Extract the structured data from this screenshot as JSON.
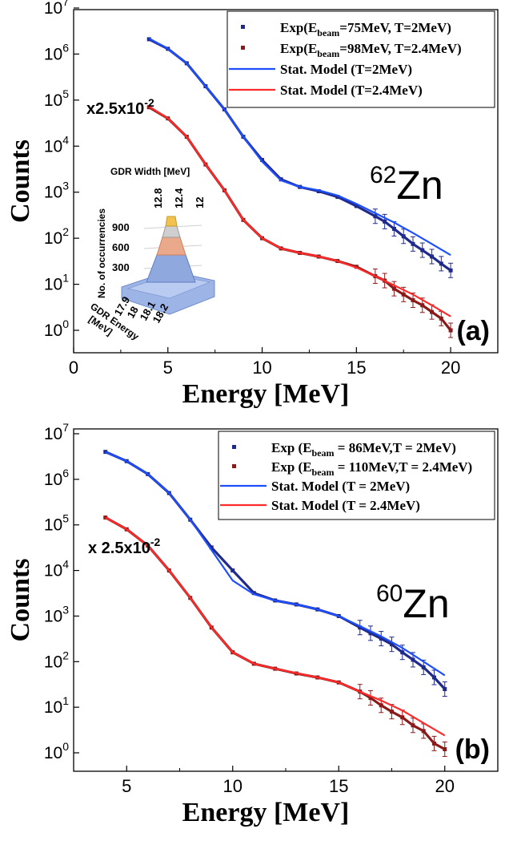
{
  "chart_data": [
    {
      "type": "scatter",
      "panel_label": "(a)",
      "nucleus": {
        "mass": "62",
        "symbol": "Zn"
      },
      "scale_label": {
        "prefix": "x2.5x10",
        "exp": "-2"
      },
      "xlabel": "Energy [MeV]",
      "ylabel": "Counts",
      "y_scale": "log",
      "xlim": [
        0,
        22.5
      ],
      "ylim_exp": [
        -0.35,
        7
      ],
      "x_ticks": [
        0,
        5,
        10,
        15,
        20
      ],
      "y_ticks": [
        {
          "base": "10",
          "exp": "0"
        },
        {
          "base": "10",
          "exp": "1"
        },
        {
          "base": "10",
          "exp": "2"
        },
        {
          "base": "10",
          "exp": "3"
        },
        {
          "base": "10",
          "exp": "4"
        },
        {
          "base": "10",
          "exp": "5"
        },
        {
          "base": "10",
          "exp": "6"
        },
        {
          "base": "10",
          "exp": "7"
        }
      ],
      "legend": [
        {
          "kind": "marker",
          "color": "#1f2a8a",
          "main": "Exp(E",
          "sub": "beam",
          "rest": "=75MeV, T=2MeV)"
        },
        {
          "kind": "marker",
          "color": "#8b1a1a",
          "main": "Exp(E",
          "sub": "beam",
          "rest": "=98MeV, T=2.4MeV)"
        },
        {
          "kind": "line",
          "color": "#1e4fff",
          "main": "Stat. Model (T=2MeV)",
          "sub": "",
          "rest": ""
        },
        {
          "kind": "line",
          "color": "#ff2a2a",
          "main": "Stat. Model (T=2.4MeV)",
          "sub": "",
          "rest": ""
        }
      ],
      "series": [
        {
          "name": "Exp(Ebeam=75MeV, T=2MeV)",
          "kind": "exp",
          "color": "#1f2a8a",
          "x": [
            4,
            5,
            6,
            7,
            8,
            9,
            10,
            11,
            12,
            13,
            14,
            15,
            16,
            16.5,
            17,
            17.5,
            18,
            18.5,
            19,
            19.5,
            20
          ],
          "y": [
            2100000.0,
            1300000.0,
            630000.0,
            200000.0,
            63000.0,
            16000.0,
            5000.0,
            1900.0,
            1300.0,
            1050.0,
            790.0,
            500.0,
            300.0,
            230.0,
            160.0,
            110.0,
            75,
            55,
            40,
            28,
            20
          ]
        },
        {
          "name": "Stat. Model (T=2MeV)",
          "kind": "model",
          "color": "#1e4fff",
          "x": [
            4,
            5,
            6,
            7,
            8,
            9,
            10,
            11,
            12,
            13,
            14,
            15,
            16,
            17,
            18,
            19,
            20
          ],
          "y": [
            2200000.0,
            1300000.0,
            630000.0,
            200000.0,
            63000.0,
            16000.0,
            4600.0,
            1800.0,
            1300.0,
            1100.0,
            850.0,
            560.0,
            350.0,
            220.0,
            130.0,
            75,
            43
          ]
        },
        {
          "name": "Exp(Ebeam=98MeV, T=2.4MeV)",
          "kind": "exp",
          "color": "#8b1a1a",
          "x": [
            4,
            5,
            6,
            7,
            8,
            9,
            10,
            11,
            12,
            13,
            14,
            15,
            16,
            16.5,
            17,
            17.5,
            18,
            18.5,
            19,
            19.5,
            20
          ],
          "y": [
            70000.0,
            40000.0,
            16000.0,
            4000.0,
            1100.0,
            250.0,
            100.0,
            60,
            48,
            40,
            32,
            24,
            15,
            12,
            8,
            6,
            4.5,
            3.5,
            2.5,
            1.8,
            1.0
          ]
        },
        {
          "name": "Stat. Model (T=2.4MeV)",
          "kind": "model",
          "color": "#ff2a2a",
          "x": [
            4,
            5,
            6,
            7,
            8,
            9,
            10,
            11,
            12,
            13,
            14,
            15,
            16,
            17,
            18,
            19,
            20
          ],
          "y": [
            73000.0,
            40000.0,
            16000.0,
            4000.0,
            1100.0,
            250.0,
            100.0,
            60,
            48,
            40,
            32,
            23,
            15,
            9.5,
            6,
            3.5,
            2.0
          ]
        }
      ],
      "inset": {
        "type": "3d-histogram",
        "width_axis_label": "GDR Width [MeV]",
        "width_ticks": [
          "12.8",
          "12.4",
          "12"
        ],
        "z_axis_label": "No. of occurrencies",
        "z_ticks": [
          "900",
          "600",
          "300"
        ],
        "energy_axis_label": [
          "GDR Energy",
          "[MeV]"
        ],
        "energy_ticks": [
          "17.9",
          "18",
          "18.1",
          "18.2"
        ]
      }
    },
    {
      "type": "scatter",
      "panel_label": "(b)",
      "nucleus": {
        "mass": "60",
        "symbol": "Zn"
      },
      "scale_label": {
        "prefix": "x 2.5x10",
        "exp": "-2"
      },
      "xlabel": "Energy [MeV]",
      "ylabel": "Counts",
      "y_scale": "log",
      "xlim": [
        2.5,
        22.5
      ],
      "ylim_exp": [
        -0.4,
        7
      ],
      "x_ticks": [
        5,
        10,
        15,
        20
      ],
      "y_ticks": [
        {
          "base": "10",
          "exp": "0"
        },
        {
          "base": "10",
          "exp": "1"
        },
        {
          "base": "10",
          "exp": "2"
        },
        {
          "base": "10",
          "exp": "3"
        },
        {
          "base": "10",
          "exp": "4"
        },
        {
          "base": "10",
          "exp": "5"
        },
        {
          "base": "10",
          "exp": "6"
        },
        {
          "base": "10",
          "exp": "7"
        }
      ],
      "legend": [
        {
          "kind": "marker",
          "color": "#1f2a8a",
          "main": "Exp (E",
          "sub": "beam",
          "rest": " = 86MeV,T = 2MeV)"
        },
        {
          "kind": "marker",
          "color": "#8b1a1a",
          "main": "Exp (E",
          "sub": "beam",
          "rest": " = 110MeV,T = 2.4MeV)"
        },
        {
          "kind": "line",
          "color": "#1e4fff",
          "main": "Stat. Model (T = 2MeV)",
          "sub": "",
          "rest": ""
        },
        {
          "kind": "line",
          "color": "#ff2a2a",
          "main": "Stat. Model (T = 2.4MeV)",
          "sub": "",
          "rest": ""
        }
      ],
      "series": [
        {
          "name": "Exp (Ebeam = 86MeV,T = 2MeV)",
          "kind": "exp",
          "color": "#1f2a8a",
          "x": [
            4,
            5,
            6,
            7,
            8,
            9,
            10,
            11,
            12,
            13,
            14,
            15,
            16,
            16.5,
            17,
            17.5,
            18,
            18.5,
            19,
            19.5,
            20
          ],
          "y": [
            4000000.0,
            2500000.0,
            1300000.0,
            500000.0,
            130000.0,
            32000.0,
            10000.0,
            3200.0,
            2200.0,
            1800.0,
            1400.0,
            1000.0,
            560.0,
            420.0,
            320.0,
            240.0,
            160.0,
            110.0,
            75,
            45,
            25
          ]
        },
        {
          "name": "Stat. Model (T = 2MeV)",
          "kind": "model",
          "color": "#1e4fff",
          "x": [
            4,
            5,
            6,
            7,
            8,
            9,
            10,
            11,
            12,
            13,
            14,
            15,
            16,
            17,
            18,
            19,
            20
          ],
          "y": [
            4000000.0,
            2500000.0,
            1300000.0,
            500000.0,
            130000.0,
            28000.0,
            6000.0,
            3000.0,
            2200.0,
            1800.0,
            1400.0,
            1000.0,
            600.0,
            360.0,
            200.0,
            100.0,
            50
          ]
        },
        {
          "name": "Exp (Ebeam = 110MeV,T = 2.4MeV)",
          "kind": "exp",
          "color": "#8b1a1a",
          "x": [
            4,
            5,
            6,
            7,
            8,
            9,
            10,
            11,
            12,
            13,
            14,
            15,
            16,
            16.5,
            17,
            17.5,
            18,
            18.5,
            19,
            19.5,
            20
          ],
          "y": [
            145000.0,
            80000.0,
            35000.0,
            10000.0,
            2500.0,
            560.0,
            160.0,
            90,
            70,
            55,
            45,
            35,
            22,
            16,
            11,
            8,
            6,
            4,
            3,
            1.6,
            1.2
          ]
        },
        {
          "name": "Stat. Model (T = 2.4MeV)",
          "kind": "model",
          "color": "#ff2a2a",
          "x": [
            4,
            5,
            6,
            7,
            8,
            9,
            10,
            11,
            12,
            13,
            14,
            15,
            16,
            17,
            18,
            19,
            20
          ],
          "y": [
            145000.0,
            80000.0,
            35000.0,
            10000.0,
            2500.0,
            560.0,
            160.0,
            90,
            70,
            56,
            45,
            35,
            22,
            14,
            8.5,
            4.5,
            2.4
          ]
        }
      ]
    }
  ]
}
